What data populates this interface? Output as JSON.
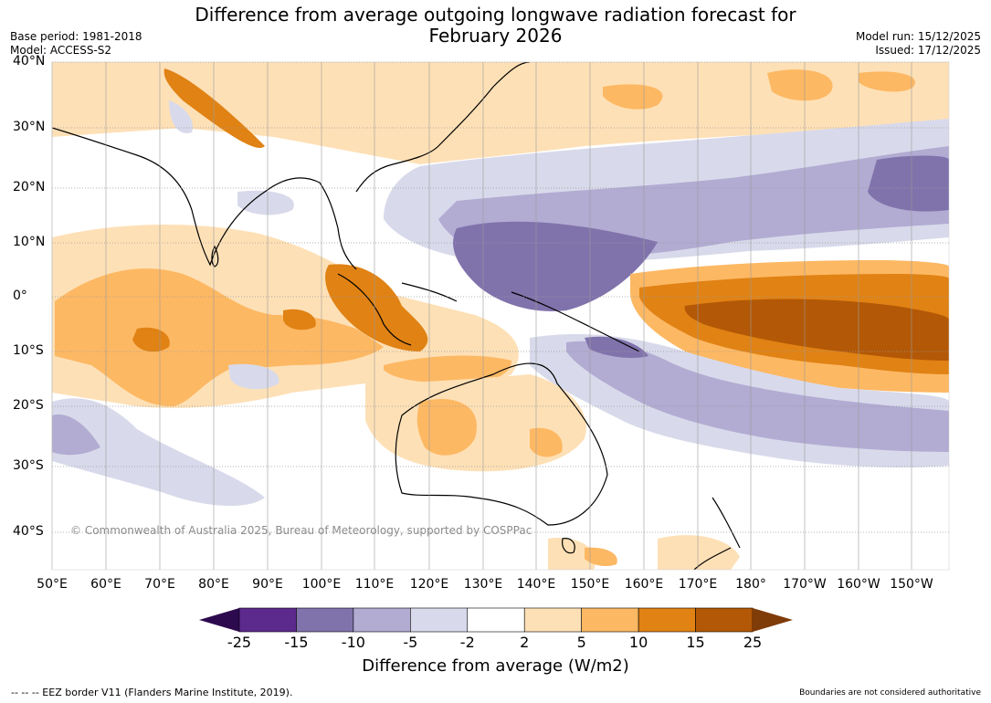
{
  "header": {
    "title_line1": "Difference from average outgoing longwave radiation forecast for",
    "title_line2": "February 2026",
    "base_period": "Base period: 1981-2018",
    "model": "Model: ACCESS-S2",
    "model_run": "Model run: 15/12/2025",
    "issued": "Issued: 17/12/2025"
  },
  "map": {
    "lat_labels": [
      "40°N",
      "30°N",
      "20°N",
      "10°N",
      "0°",
      "10°S",
      "20°S",
      "30°S",
      "40°S"
    ],
    "lon_labels": [
      "50°E",
      "60°E",
      "70°E",
      "80°E",
      "90°E",
      "100°E",
      "110°E",
      "120°E",
      "130°E",
      "140°E",
      "150°E",
      "160°E",
      "170°E",
      "180°",
      "170°W",
      "160°W",
      "150°W"
    ],
    "copyright": "© Commonwealth of Australia 2025, Bureau of Meteorology, supported by COSPPac"
  },
  "colorbar": {
    "ticks": [
      "-25",
      "-15",
      "-10",
      "-5",
      "-2",
      "2",
      "5",
      "10",
      "15",
      "25"
    ],
    "colors": [
      "#2d0a4e",
      "#5b2a8c",
      "#8073ac",
      "#b2abd2",
      "#d8daeb",
      "#ffffff",
      "#fee0b6",
      "#fdb863",
      "#e08214",
      "#b35806",
      "#7f3b08"
    ],
    "label": "Difference from average (W/m2)"
  },
  "footer": {
    "eez_note": "--  --  -- EEZ border V11 (Flanders Marine Institute, 2019).",
    "disclaimer": "Boundaries are not considered authoritative"
  }
}
